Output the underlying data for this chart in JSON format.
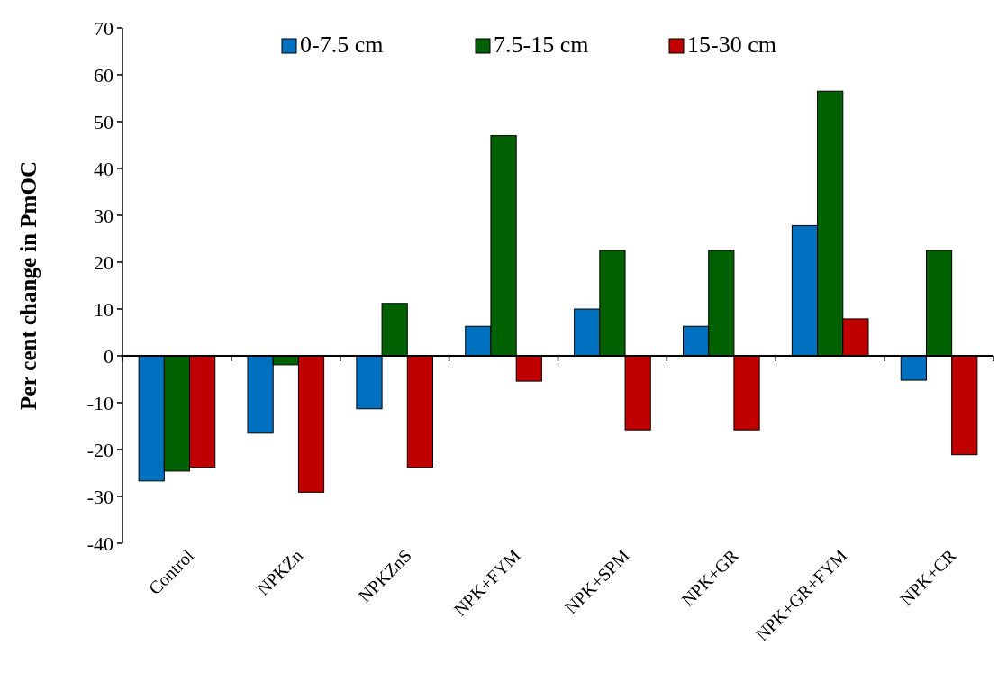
{
  "chart_data": {
    "type": "bar",
    "ylabel": "Per cent change in PmOC",
    "categories": [
      "Control",
      "NPKZn",
      "NPKZnS",
      "NPK+FYM",
      "NPK+SPM",
      "NPK+GR",
      "NPK+GR+FYM",
      "NPK+CR"
    ],
    "series": [
      {
        "name": "0-7.5 cm",
        "color": "#0070c0",
        "values": [
          -26.7,
          -16.5,
          -11.3,
          6.3,
          10,
          6.3,
          27.8,
          -5.2
        ]
      },
      {
        "name": "7.5-15 cm",
        "color": "#006100",
        "values": [
          -24.6,
          -1.9,
          11.2,
          47,
          22.5,
          22.5,
          56.5,
          22.5
        ]
      },
      {
        "name": "15-30 cm",
        "color": "#c00000",
        "values": [
          -23.8,
          -29.1,
          -23.8,
          -5.4,
          -15.8,
          -15.8,
          7.9,
          -21.1
        ]
      }
    ],
    "ylim": [
      -40,
      70
    ],
    "yticks": [
      -40,
      -30,
      -20,
      -10,
      0,
      10,
      20,
      30,
      40,
      50,
      60,
      70
    ],
    "legend": "top"
  }
}
